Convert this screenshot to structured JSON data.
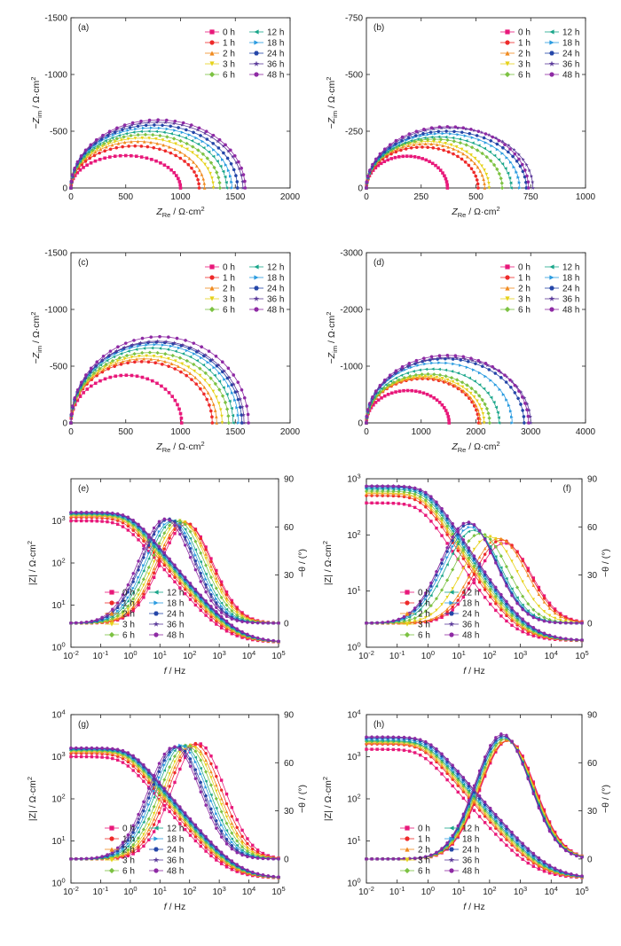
{
  "time_labels": [
    "0 h",
    "1 h",
    "2 h",
    "3 h",
    "6 h",
    "12 h",
    "18 h",
    "24 h",
    "36 h",
    "48 h"
  ],
  "colors": [
    "#e8187a",
    "#ee2a2a",
    "#f08a1e",
    "#e6d21a",
    "#7cc242",
    "#1aa68a",
    "#2a9be0",
    "#2446a8",
    "#5b3a9a",
    "#8e2aa4"
  ],
  "markers": [
    "square",
    "circle",
    "triangle-up",
    "triangle-down",
    "diamond",
    "triangle-left",
    "triangle-right",
    "hexagon",
    "star",
    "circle"
  ],
  "nyquist_axes": {
    "xlabel_main": "Z",
    "xlabel_sub": "Re",
    "xlabel_unit": " / Ω·cm",
    "ylabel_prefix": "−Z",
    "ylabel_sub": "im",
    "ylabel_unit": " / Ω·cm",
    "unit_sup": "2"
  },
  "bode_axes": {
    "xlabel_main": "f",
    "xlabel_unit": " / Hz",
    "ylabel_left": "|Z| / Ω·cm",
    "ylabel_left_sup": "2",
    "ylabel_right": "−θ / (°)"
  },
  "chart_data": [
    {
      "panel": "(a)",
      "type": "scatter",
      "subtype": "nyquist",
      "xlim": [
        0,
        2000
      ],
      "ylim": [
        0,
        -1500
      ],
      "xticks": [
        "0",
        "500",
        "1000",
        "1500",
        "2000"
      ],
      "yticks": [
        "0",
        "-500",
        "-1000",
        "-1500"
      ],
      "series_note": "semicircle arcs: right-intercept (Ω·cm²), peak −Zim (Ω·cm²)",
      "series": [
        {
          "name": "0 h",
          "r": 1000,
          "peak": -285
        },
        {
          "name": "1 h",
          "r": 1170,
          "peak": -370
        },
        {
          "name": "2 h",
          "r": 1220,
          "peak": -410
        },
        {
          "name": "3 h",
          "r": 1300,
          "peak": -440
        },
        {
          "name": "6 h",
          "r": 1360,
          "peak": -470
        },
        {
          "name": "12 h",
          "r": 1420,
          "peak": -500
        },
        {
          "name": "18 h",
          "r": 1470,
          "peak": -530
        },
        {
          "name": "24 h",
          "r": 1520,
          "peak": -555
        },
        {
          "name": "36 h",
          "r": 1570,
          "peak": -580
        },
        {
          "name": "48 h",
          "r": 1590,
          "peak": -600
        }
      ]
    },
    {
      "panel": "(b)",
      "type": "scatter",
      "subtype": "nyquist",
      "xlim": [
        0,
        1000
      ],
      "ylim": [
        0,
        -750
      ],
      "xticks": [
        "0",
        "250",
        "500",
        "750",
        "1000"
      ],
      "yticks": [
        "0",
        "-250",
        "-500",
        "-750"
      ],
      "series": [
        {
          "name": "0 h",
          "r": 370,
          "peak": -140
        },
        {
          "name": "1 h",
          "r": 510,
          "peak": -180
        },
        {
          "name": "2 h",
          "r": 540,
          "peak": -195
        },
        {
          "name": "3 h",
          "r": 560,
          "peak": -205
        },
        {
          "name": "6 h",
          "r": 620,
          "peak": -215
        },
        {
          "name": "12 h",
          "r": 660,
          "peak": -225
        },
        {
          "name": "18 h",
          "r": 700,
          "peak": -240
        },
        {
          "name": "24 h",
          "r": 730,
          "peak": -250
        },
        {
          "name": "36 h",
          "r": 760,
          "peak": -265
        },
        {
          "name": "48 h",
          "r": 740,
          "peak": -270
        }
      ]
    },
    {
      "panel": "(c)",
      "type": "scatter",
      "subtype": "nyquist",
      "xlim": [
        0,
        2000
      ],
      "ylim": [
        0,
        -1500
      ],
      "xticks": [
        "0",
        "500",
        "1000",
        "1500",
        "2000"
      ],
      "yticks": [
        "0",
        "-500",
        "-1000",
        "-1500"
      ],
      "series": [
        {
          "name": "0 h",
          "r": 1010,
          "peak": -420
        },
        {
          "name": "1 h",
          "r": 1290,
          "peak": -540
        },
        {
          "name": "2 h",
          "r": 1330,
          "peak": -565
        },
        {
          "name": "3 h",
          "r": 1380,
          "peak": -590
        },
        {
          "name": "6 h",
          "r": 1440,
          "peak": -620
        },
        {
          "name": "12 h",
          "r": 1480,
          "peak": -660
        },
        {
          "name": "18 h",
          "r": 1530,
          "peak": -690
        },
        {
          "name": "24 h",
          "r": 1560,
          "peak": -710
        },
        {
          "name": "36 h",
          "r": 1580,
          "peak": -720
        },
        {
          "name": "48 h",
          "r": 1620,
          "peak": -760
        }
      ]
    },
    {
      "panel": "(d)",
      "type": "scatter",
      "subtype": "nyquist",
      "xlim": [
        0,
        4000
      ],
      "ylim": [
        0,
        -3000
      ],
      "xticks": [
        "0",
        "1000",
        "2000",
        "3000",
        "4000"
      ],
      "yticks": [
        "0",
        "-1000",
        "-2000",
        "-3000"
      ],
      "series": [
        {
          "name": "0 h",
          "r": 1510,
          "peak": -570
        },
        {
          "name": "1 h",
          "r": 2050,
          "peak": -780
        },
        {
          "name": "2 h",
          "r": 2080,
          "peak": -800
        },
        {
          "name": "3 h",
          "r": 2150,
          "peak": -820
        },
        {
          "name": "6 h",
          "r": 2250,
          "peak": -860
        },
        {
          "name": "12 h",
          "r": 2420,
          "peak": -950
        },
        {
          "name": "18 h",
          "r": 2660,
          "peak": -1060
        },
        {
          "name": "24 h",
          "r": 2880,
          "peak": -1130
        },
        {
          "name": "36 h",
          "r": 3000,
          "peak": -1150
        },
        {
          "name": "48 h",
          "r": 2960,
          "peak": -1190
        }
      ]
    },
    {
      "panel": "(e)",
      "type": "scatter",
      "subtype": "bode",
      "xlim": [
        0.01,
        100000
      ],
      "ylim_left": [
        1,
        10000
      ],
      "ylim_right": [
        -15,
        90
      ],
      "xticks": [
        "10-2",
        "10-1",
        "100",
        "101",
        "102",
        "103",
        "104",
        "105"
      ],
      "yticks_left": [
        "100",
        "101",
        "102",
        "103"
      ],
      "yticks_right": [
        "0",
        "30",
        "60",
        "90"
      ],
      "series_note": "low-frequency |Z| (Ω·cm²), peak phase (°), peak frequency (Hz)",
      "series": [
        {
          "name": "0 h",
          "z_low": 1000,
          "phase_peak": 62,
          "f_peak": 80
        },
        {
          "name": "1 h",
          "z_low": 1200,
          "phase_peak": 63,
          "f_peak": 70
        },
        {
          "name": "2 h",
          "z_low": 1300,
          "phase_peak": 63,
          "f_peak": 60
        },
        {
          "name": "3 h",
          "z_low": 1350,
          "phase_peak": 64,
          "f_peak": 50
        },
        {
          "name": "6 h",
          "z_low": 1400,
          "phase_peak": 64,
          "f_peak": 40
        },
        {
          "name": "12 h",
          "z_low": 1450,
          "phase_peak": 64,
          "f_peak": 30
        },
        {
          "name": "18 h",
          "z_low": 1500,
          "phase_peak": 64,
          "f_peak": 25
        },
        {
          "name": "24 h",
          "z_low": 1550,
          "phase_peak": 65,
          "f_peak": 20
        },
        {
          "name": "36 h",
          "z_low": 1580,
          "phase_peak": 65,
          "f_peak": 18
        },
        {
          "name": "48 h",
          "z_low": 1600,
          "phase_peak": 65,
          "f_peak": 15
        }
      ]
    },
    {
      "panel": "(f)",
      "type": "scatter",
      "subtype": "bode",
      "xlim": [
        0.01,
        100000
      ],
      "ylim_left": [
        1,
        1000
      ],
      "ylim_right": [
        -15,
        90
      ],
      "xticks": [
        "10-2",
        "10-1",
        "100",
        "101",
        "102",
        "103",
        "104",
        "105"
      ],
      "yticks_left": [
        "100",
        "101",
        "102",
        "103"
      ],
      "yticks_right": [
        "0",
        "30",
        "60",
        "90"
      ],
      "series": [
        {
          "name": "0 h",
          "z_low": 370,
          "phase_peak": 50,
          "f_peak": 300
        },
        {
          "name": "1 h",
          "z_low": 500,
          "phase_peak": 52,
          "f_peak": 250
        },
        {
          "name": "2 h",
          "z_low": 540,
          "phase_peak": 53,
          "f_peak": 200
        },
        {
          "name": "3 h",
          "z_low": 560,
          "phase_peak": 54,
          "f_peak": 100
        },
        {
          "name": "6 h",
          "z_low": 600,
          "phase_peak": 56,
          "f_peak": 50
        },
        {
          "name": "12 h",
          "z_low": 650,
          "phase_peak": 58,
          "f_peak": 30
        },
        {
          "name": "18 h",
          "z_low": 690,
          "phase_peak": 60,
          "f_peak": 25
        },
        {
          "name": "24 h",
          "z_low": 720,
          "phase_peak": 62,
          "f_peak": 22
        },
        {
          "name": "36 h",
          "z_low": 750,
          "phase_peak": 63,
          "f_peak": 20
        },
        {
          "name": "48 h",
          "z_low": 740,
          "phase_peak": 63,
          "f_peak": 20
        }
      ]
    },
    {
      "panel": "(g)",
      "type": "scatter",
      "subtype": "bode",
      "xlim": [
        0.01,
        100000
      ],
      "ylim_left": [
        1,
        10000
      ],
      "ylim_right": [
        -15,
        90
      ],
      "xticks": [
        "10-2",
        "10-1",
        "100",
        "101",
        "102",
        "103",
        "104",
        "105"
      ],
      "yticks_left": [
        "100",
        "101",
        "102",
        "103",
        "104"
      ],
      "yticks_right": [
        "0",
        "30",
        "60",
        "90"
      ],
      "series": [
        {
          "name": "0 h",
          "z_low": 1000,
          "phase_peak": 72,
          "f_peak": 200
        },
        {
          "name": "1 h",
          "z_low": 1200,
          "phase_peak": 72,
          "f_peak": 150
        },
        {
          "name": "2 h",
          "z_low": 1300,
          "phase_peak": 71,
          "f_peak": 120
        },
        {
          "name": "3 h",
          "z_low": 1350,
          "phase_peak": 71,
          "f_peak": 100
        },
        {
          "name": "6 h",
          "z_low": 1400,
          "phase_peak": 71,
          "f_peak": 80
        },
        {
          "name": "12 h",
          "z_low": 1450,
          "phase_peak": 71,
          "f_peak": 60
        },
        {
          "name": "18 h",
          "z_low": 1500,
          "phase_peak": 71,
          "f_peak": 50
        },
        {
          "name": "24 h",
          "z_low": 1550,
          "phase_peak": 70,
          "f_peak": 40
        },
        {
          "name": "36 h",
          "z_low": 1580,
          "phase_peak": 70,
          "f_peak": 35
        },
        {
          "name": "48 h",
          "z_low": 1620,
          "phase_peak": 70,
          "f_peak": 30
        }
      ]
    },
    {
      "panel": "(h)",
      "type": "scatter",
      "subtype": "bode",
      "xlim": [
        0.01,
        100000
      ],
      "ylim_left": [
        1,
        10000
      ],
      "ylim_right": [
        -15,
        90
      ],
      "xticks": [
        "10-2",
        "10-1",
        "100",
        "101",
        "102",
        "103",
        "104",
        "105"
      ],
      "yticks_left": [
        "100",
        "101",
        "102",
        "103",
        "104"
      ],
      "yticks_right": [
        "0",
        "30",
        "60",
        "90"
      ],
      "series": [
        {
          "name": "0 h",
          "z_low": 1500,
          "phase_peak": 74,
          "f_peak": 400
        },
        {
          "name": "1 h",
          "z_low": 2000,
          "phase_peak": 74,
          "f_peak": 380
        },
        {
          "name": "2 h",
          "z_low": 2100,
          "phase_peak": 74,
          "f_peak": 360
        },
        {
          "name": "3 h",
          "z_low": 2200,
          "phase_peak": 75,
          "f_peak": 340
        },
        {
          "name": "6 h",
          "z_low": 2300,
          "phase_peak": 75,
          "f_peak": 320
        },
        {
          "name": "12 h",
          "z_low": 2400,
          "phase_peak": 76,
          "f_peak": 300
        },
        {
          "name": "18 h",
          "z_low": 2600,
          "phase_peak": 76,
          "f_peak": 290
        },
        {
          "name": "24 h",
          "z_low": 2800,
          "phase_peak": 77,
          "f_peak": 280
        },
        {
          "name": "36 h",
          "z_low": 2950,
          "phase_peak": 77,
          "f_peak": 270
        },
        {
          "name": "48 h",
          "z_low": 2950,
          "phase_peak": 78,
          "f_peak": 260
        }
      ]
    }
  ]
}
